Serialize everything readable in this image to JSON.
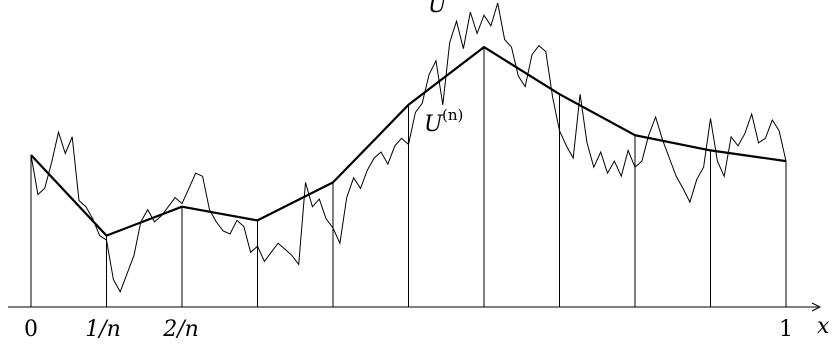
{
  "labels": {
    "x_axis": "x",
    "tick_0": "0",
    "tick_1n": "1/n",
    "tick_2n": "2/n",
    "tick_1": "1",
    "U_base": "U",
    "Un_base": "U",
    "Un_sup": "(n)"
  },
  "diagram": {
    "n_intervals": 10,
    "interpolant_values": [
      1.0,
      0.47,
      0.66,
      0.57,
      0.82,
      1.33,
      1.71,
      1.4,
      1.13,
      1.03,
      0.96
    ],
    "path_values": [
      1.0,
      0.74,
      0.78,
      0.95,
      1.15,
      1.01,
      1.12,
      0.7,
      0.66,
      0.58,
      0.47,
      0.44,
      0.18,
      0.1,
      0.22,
      0.34,
      0.56,
      0.64,
      0.56,
      0.6,
      0.66,
      0.72,
      0.68,
      0.78,
      0.88,
      0.86,
      0.64,
      0.56,
      0.5,
      0.48,
      0.57,
      0.53,
      0.36,
      0.4,
      0.3,
      0.36,
      0.42,
      0.38,
      0.34,
      0.28,
      0.82,
      0.66,
      0.71,
      0.58,
      0.52,
      0.42,
      0.72,
      0.85,
      0.78,
      0.9,
      0.98,
      1.02,
      0.94,
      1.06,
      1.11,
      1.07,
      1.28,
      1.34,
      1.53,
      1.62,
      1.33,
      1.74,
      1.88,
      1.7,
      1.94,
      1.8,
      1.92,
      1.85,
      2.0,
      1.76,
      1.71,
      1.52,
      1.45,
      1.66,
      1.72,
      1.68,
      1.38,
      1.16,
      1.06,
      0.98,
      1.4,
      1.08,
      0.92,
      1.02,
      0.88,
      0.96,
      0.86,
      1.03,
      0.92,
      0.96,
      1.13,
      1.25,
      1.1,
      0.98,
      0.86,
      0.78,
      0.69,
      0.84,
      0.92,
      1.24,
      0.96,
      0.86,
      1.12,
      1.06,
      1.14,
      1.27,
      1.08,
      1.11,
      1.23,
      1.16,
      0.96
    ]
  }
}
